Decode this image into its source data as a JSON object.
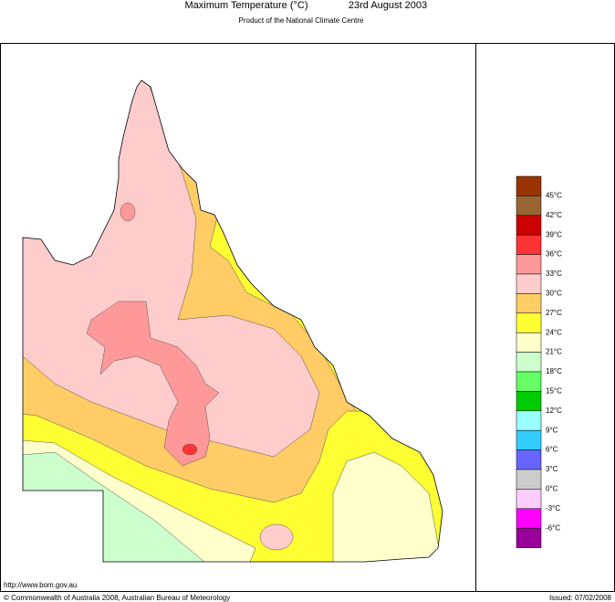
{
  "header": {
    "title": "Maximum Temperature (°C)",
    "date": "23rd August 2003",
    "subtitle": "Product of the National Climate Centre"
  },
  "legend": {
    "colors": [
      "#993300",
      "#996633",
      "#cc0000",
      "#ff3333",
      "#ff9999",
      "#ffcccc",
      "#ffcc66",
      "#ffff33",
      "#ffffcc",
      "#ccffcc",
      "#66ff66",
      "#00cc00",
      "#99ffff",
      "#33ccff",
      "#6666ff",
      "#cccccc",
      "#ffccff",
      "#ff00ff",
      "#990099"
    ],
    "labels": [
      "45°C",
      "42°C",
      "39°C",
      "36°C",
      "33°C",
      "30°C",
      "27°C",
      "24°C",
      "21°C",
      "18°C",
      "15°C",
      "12°C",
      "9°C",
      "6°C",
      "3°C",
      "0°C",
      "-3°C",
      "-6°C"
    ]
  },
  "footer": {
    "url": "http://www.bom.gov.au",
    "copyright": "© Commonwealth of Australia 2008, Australian Bureau of Meteorology",
    "issued": "Issued: 07/02/2008"
  }
}
